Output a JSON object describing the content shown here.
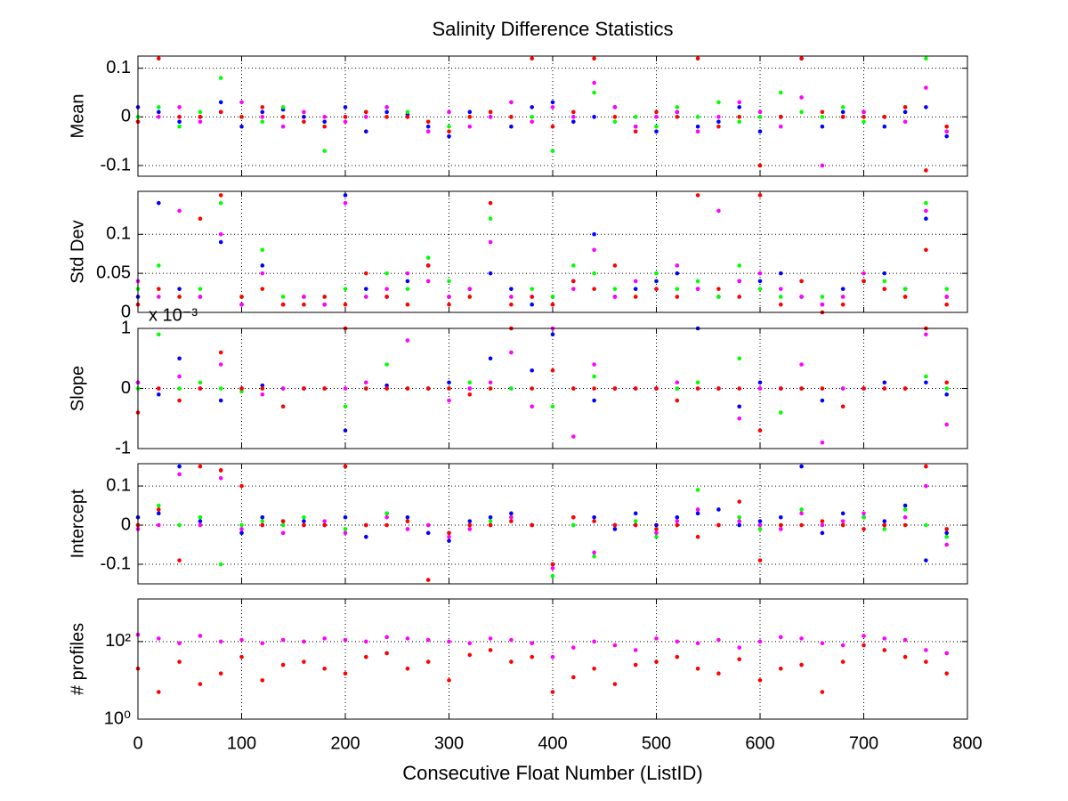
{
  "chart_data": [
    {
      "type": "scatter",
      "title": "Salinity Difference Statistics",
      "ylabel": "Mean",
      "x": [
        0,
        20,
        40,
        60,
        80,
        100,
        120,
        140,
        160,
        180,
        200,
        220,
        240,
        260,
        280,
        300,
        320,
        340,
        360,
        380,
        400,
        420,
        440,
        460,
        480,
        500,
        520,
        540,
        560,
        580,
        600,
        620,
        640,
        660,
        680,
        700,
        720,
        740,
        760,
        780
      ],
      "xlim": [
        0,
        800
      ],
      "xticks": [
        0,
        100,
        200,
        300,
        400,
        500,
        600,
        700,
        800
      ],
      "ylim": [
        -0.122,
        0.125
      ],
      "yticks": [
        -0.1,
        0,
        0.1
      ],
      "grid": true,
      "series": [
        {
          "name": "blue",
          "color": "#0000ff",
          "values": [
            0.02,
            0.01,
            -0.01,
            0.0,
            0.03,
            -0.02,
            0.01,
            0.015,
            0.0,
            -0.01,
            0.02,
            -0.03,
            0.01,
            0.005,
            -0.02,
            -0.04,
            0.01,
            0.0,
            -0.02,
            0.02,
            0.03,
            -0.01,
            0.0,
            0.02,
            -0.02,
            -0.03,
            0.01,
            -0.02,
            -0.01,
            0.02,
            -0.03,
            0.0,
            0.12,
            -0.02,
            0.01,
            0.01,
            -0.02,
            0.01,
            0.02,
            -0.04
          ]
        },
        {
          "name": "green",
          "color": "#00ff00",
          "values": [
            0.0,
            0.02,
            -0.02,
            0.01,
            0.08,
            0.0,
            -0.01,
            0.02,
            0.01,
            -0.07,
            0.0,
            0.01,
            0.02,
            0.01,
            -0.01,
            -0.02,
            0.0,
            0.01,
            0.03,
            0.0,
            -0.07,
            0.0,
            0.05,
            -0.01,
            0.0,
            -0.02,
            0.02,
            0.0,
            0.03,
            -0.01,
            0.0,
            0.05,
            0.01,
            0.0,
            0.02,
            -0.01,
            0.0,
            0.02,
            0.12,
            -0.02
          ]
        },
        {
          "name": "magenta",
          "color": "#ff00ff",
          "values": [
            -0.01,
            0.0,
            0.02,
            -0.01,
            0.01,
            0.03,
            0.0,
            -0.02,
            0.01,
            0.0,
            -0.01,
            0.0,
            0.02,
            0.0,
            -0.03,
            0.01,
            -0.02,
            0.0,
            0.03,
            -0.01,
            0.02,
            0.0,
            0.07,
            0.02,
            -0.02,
            0.0,
            0.01,
            -0.03,
            0.0,
            0.03,
            0.01,
            -0.02,
            0.04,
            -0.1,
            0.0,
            0.01,
            0.0,
            -0.01,
            0.06,
            -0.03
          ]
        },
        {
          "name": "red",
          "color": "#ff0000",
          "values": [
            -0.01,
            0.12,
            0.0,
            0.0,
            0.01,
            0.0,
            0.02,
            0.0,
            -0.01,
            -0.02,
            0.0,
            0.01,
            0.0,
            0.0,
            -0.01,
            -0.03,
            0.0,
            0.01,
            0.0,
            0.12,
            -0.02,
            0.01,
            0.12,
            0.0,
            -0.03,
            0.01,
            0.0,
            0.12,
            -0.02,
            0.0,
            -0.1,
            0.0,
            0.12,
            0.01,
            0.0,
            0.0,
            0.0,
            0.02,
            -0.11,
            -0.02
          ]
        }
      ]
    },
    {
      "type": "scatter",
      "ylabel": "Std Dev",
      "x": [
        0,
        20,
        40,
        60,
        80,
        100,
        120,
        140,
        160,
        180,
        200,
        220,
        240,
        260,
        280,
        300,
        320,
        340,
        360,
        380,
        400,
        420,
        440,
        460,
        480,
        500,
        520,
        540,
        560,
        580,
        600,
        620,
        640,
        660,
        680,
        700,
        720,
        740,
        760,
        780
      ],
      "xlim": [
        0,
        800
      ],
      "xticks": [
        0,
        100,
        200,
        300,
        400,
        500,
        600,
        700,
        800
      ],
      "ylim": [
        0,
        0.155
      ],
      "yticks": [
        0,
        0.05,
        0.1
      ],
      "grid": true,
      "series": [
        {
          "name": "blue",
          "color": "#0000ff",
          "values": [
            0.02,
            0.14,
            0.03,
            0.02,
            0.09,
            0.01,
            0.06,
            0.01,
            0.02,
            0.01,
            0.15,
            0.03,
            0.02,
            0.04,
            0.06,
            0.02,
            0.03,
            0.05,
            0.03,
            0.01,
            0.02,
            0.04,
            0.1,
            0.02,
            0.03,
            0.04,
            0.05,
            0.03,
            0.02,
            0.04,
            0.04,
            0.05,
            0.02,
            0.01,
            0.03,
            0.04,
            0.05,
            0.03,
            0.12,
            0.02
          ]
        },
        {
          "name": "green",
          "color": "#00ff00",
          "values": [
            0.03,
            0.06,
            0.02,
            0.03,
            0.14,
            0.02,
            0.08,
            0.02,
            0.01,
            0.02,
            0.03,
            0.02,
            0.05,
            0.03,
            0.07,
            0.04,
            0.02,
            0.12,
            0.02,
            0.03,
            0.02,
            0.06,
            0.05,
            0.03,
            0.02,
            0.05,
            0.03,
            0.04,
            0.02,
            0.06,
            0.03,
            0.02,
            0.04,
            0.02,
            0.02,
            0.05,
            0.04,
            0.03,
            0.14,
            0.03
          ]
        },
        {
          "name": "magenta",
          "color": "#ff00ff",
          "values": [
            0.04,
            0.02,
            0.13,
            0.02,
            0.1,
            0.01,
            0.05,
            0.01,
            0.02,
            0.01,
            0.14,
            0.02,
            0.03,
            0.05,
            0.04,
            0.02,
            0.03,
            0.09,
            0.02,
            0.02,
            0.01,
            0.03,
            0.08,
            0.02,
            0.04,
            0.03,
            0.06,
            0.03,
            0.13,
            0.04,
            0.05,
            0.03,
            0.02,
            0.01,
            0.02,
            0.05,
            0.03,
            0.02,
            0.13,
            0.02
          ]
        },
        {
          "name": "red",
          "color": "#ff0000",
          "values": [
            0.01,
            0.03,
            0.02,
            0.12,
            0.15,
            0.02,
            0.03,
            0.01,
            0.01,
            0.02,
            0.01,
            0.05,
            0.02,
            0.01,
            0.06,
            0.01,
            0.02,
            0.14,
            0.01,
            0.02,
            0.01,
            0.04,
            0.03,
            0.06,
            0.02,
            0.03,
            0.02,
            0.15,
            0.03,
            0.02,
            0.15,
            0.01,
            0.04,
            0.0,
            0.01,
            0.04,
            0.03,
            0.02,
            0.08,
            0.01
          ]
        }
      ]
    },
    {
      "type": "scatter",
      "ylabel": "Slope",
      "annotation": "x 10⁻³",
      "x": [
        0,
        20,
        40,
        60,
        80,
        100,
        120,
        140,
        160,
        180,
        200,
        220,
        240,
        260,
        280,
        300,
        320,
        340,
        360,
        380,
        400,
        420,
        440,
        460,
        480,
        500,
        520,
        540,
        560,
        580,
        600,
        620,
        640,
        660,
        680,
        700,
        720,
        740,
        760,
        780
      ],
      "xlim": [
        0,
        800
      ],
      "xticks": [
        0,
        100,
        200,
        300,
        400,
        500,
        600,
        700,
        800
      ],
      "ylim": [
        -1,
        1
      ],
      "yticks": [
        -1,
        0,
        1
      ],
      "grid": true,
      "series": [
        {
          "name": "blue",
          "color": "#0000ff",
          "values": [
            0.1,
            -0.1,
            0.5,
            0.0,
            -0.2,
            0.0,
            0.05,
            0.0,
            0.0,
            0.0,
            -0.7,
            0.0,
            0.05,
            0.0,
            0.0,
            0.1,
            0.0,
            0.5,
            0.0,
            0.3,
            0.9,
            0.0,
            -0.2,
            0.0,
            0.0,
            0.0,
            0.0,
            1.0,
            0.0,
            -0.3,
            0.1,
            0.0,
            0.0,
            -0.2,
            0.0,
            0.0,
            0.1,
            0.0,
            0.1,
            -0.1
          ]
        },
        {
          "name": "green",
          "color": "#00ff00",
          "values": [
            0.0,
            0.9,
            0.0,
            0.1,
            0.0,
            -0.05,
            0.0,
            0.0,
            0.0,
            0.0,
            -0.3,
            0.0,
            0.4,
            0.0,
            0.0,
            0.0,
            0.1,
            0.0,
            0.0,
            0.0,
            -0.3,
            0.0,
            0.2,
            0.0,
            0.0,
            0.0,
            0.0,
            0.1,
            0.0,
            0.5,
            0.0,
            -0.4,
            0.0,
            0.0,
            0.0,
            0.0,
            0.0,
            0.0,
            0.2,
            0.0
          ]
        },
        {
          "name": "magenta",
          "color": "#ff00ff",
          "values": [
            0.1,
            0.0,
            0.2,
            0.0,
            0.4,
            0.0,
            -0.1,
            0.0,
            0.0,
            0.0,
            0.0,
            0.1,
            0.0,
            0.8,
            0.0,
            -0.2,
            0.0,
            0.1,
            0.6,
            -0.3,
            1.0,
            -0.8,
            0.4,
            0.0,
            0.0,
            0.0,
            0.1,
            0.0,
            0.0,
            -0.5,
            0.0,
            0.0,
            0.4,
            -0.9,
            0.0,
            0.0,
            0.0,
            0.0,
            0.9,
            -0.6
          ]
        },
        {
          "name": "red",
          "color": "#ff0000",
          "values": [
            -0.4,
            0.0,
            -0.2,
            0.0,
            0.6,
            0.0,
            0.0,
            -0.3,
            0.0,
            0.0,
            1.0,
            0.0,
            0.0,
            0.0,
            0.0,
            0.0,
            -0.1,
            0.0,
            1.0,
            0.0,
            0.3,
            0.0,
            0.0,
            0.0,
            0.0,
            0.0,
            -0.2,
            0.0,
            0.0,
            0.0,
            -0.7,
            0.0,
            0.0,
            0.0,
            -0.3,
            0.0,
            0.0,
            0.0,
            1.0,
            0.1
          ]
        }
      ]
    },
    {
      "type": "scatter",
      "ylabel": "Intercept",
      "x": [
        0,
        20,
        40,
        60,
        80,
        100,
        120,
        140,
        160,
        180,
        200,
        220,
        240,
        260,
        280,
        300,
        320,
        340,
        360,
        380,
        400,
        420,
        440,
        460,
        480,
        500,
        520,
        540,
        560,
        580,
        600,
        620,
        640,
        660,
        680,
        700,
        720,
        740,
        760,
        780
      ],
      "xlim": [
        0,
        800
      ],
      "xticks": [
        0,
        100,
        200,
        300,
        400,
        500,
        600,
        700,
        800
      ],
      "ylim": [
        -0.15,
        0.157
      ],
      "yticks": [
        -0.1,
        0,
        0.1
      ],
      "grid": true,
      "series": [
        {
          "name": "blue",
          "color": "#0000ff",
          "values": [
            0.02,
            0.03,
            0.15,
            0.01,
            0.14,
            -0.02,
            0.02,
            0.01,
            0.01,
            0.0,
            0.02,
            -0.03,
            0.03,
            0.02,
            -0.02,
            -0.04,
            0.01,
            0.02,
            0.03,
            0.0,
            -0.1,
            0.0,
            0.02,
            -0.01,
            0.03,
            0.0,
            0.02,
            0.03,
            0.04,
            0.0,
            0.01,
            0.02,
            0.15,
            -0.02,
            0.03,
            0.02,
            0.01,
            0.05,
            -0.09,
            -0.02
          ]
        },
        {
          "name": "green",
          "color": "#00ff00",
          "values": [
            0.0,
            0.05,
            0.0,
            0.02,
            -0.1,
            0.0,
            0.01,
            0.0,
            0.02,
            0.0,
            -0.01,
            0.0,
            0.03,
            0.01,
            0.0,
            -0.02,
            0.0,
            0.01,
            0.02,
            0.0,
            -0.13,
            0.0,
            -0.08,
            0.0,
            0.01,
            -0.03,
            0.0,
            0.09,
            0.0,
            0.02,
            -0.01,
            0.0,
            0.04,
            0.0,
            0.0,
            0.02,
            -0.01,
            0.04,
            0.0,
            -0.03
          ]
        },
        {
          "name": "magenta",
          "color": "#ff00ff",
          "values": [
            -0.01,
            0.0,
            0.13,
            0.0,
            0.12,
            -0.01,
            0.0,
            -0.02,
            0.0,
            0.01,
            -0.02,
            0.0,
            0.02,
            -0.01,
            0.0,
            -0.03,
            -0.01,
            0.0,
            0.02,
            0.0,
            -0.11,
            0.02,
            -0.07,
            0.0,
            0.0,
            -0.02,
            0.01,
            0.04,
            0.0,
            0.01,
            0.0,
            -0.01,
            0.03,
            0.0,
            0.01,
            0.03,
            0.0,
            0.02,
            0.1,
            -0.05
          ]
        },
        {
          "name": "red",
          "color": "#ff0000",
          "values": [
            0.0,
            0.04,
            -0.09,
            0.15,
            0.14,
            0.1,
            0.0,
            0.01,
            0.0,
            0.0,
            0.15,
            0.0,
            0.0,
            0.01,
            -0.14,
            -0.02,
            0.0,
            0.0,
            0.01,
            0.0,
            -0.1,
            0.02,
            0.01,
            0.0,
            0.0,
            -0.01,
            0.0,
            -0.03,
            0.0,
            0.06,
            -0.09,
            0.0,
            0.0,
            0.01,
            0.0,
            -0.01,
            0.0,
            0.0,
            0.15,
            -0.01
          ]
        }
      ]
    },
    {
      "type": "scatter",
      "ylabel": "# profiles",
      "xlabel": "Consecutive Float Number (ListID)",
      "yscale": "log",
      "x": [
        0,
        20,
        40,
        60,
        80,
        100,
        120,
        140,
        160,
        180,
        200,
        220,
        240,
        260,
        280,
        300,
        320,
        340,
        360,
        380,
        400,
        420,
        440,
        460,
        480,
        500,
        520,
        540,
        560,
        580,
        600,
        620,
        640,
        660,
        680,
        700,
        720,
        740,
        760,
        780
      ],
      "xlim": [
        0,
        800
      ],
      "xticks": [
        0,
        100,
        200,
        300,
        400,
        500,
        600,
        700,
        800
      ],
      "ylim": [
        1,
        1250
      ],
      "yticks": [
        {
          "value": 1,
          "label": "10⁰"
        },
        {
          "value": 100,
          "label": "10²"
        }
      ],
      "grid": true,
      "series": [
        {
          "name": "magenta",
          "color": "#ff00ff",
          "values": [
            150,
            120,
            90,
            140,
            100,
            110,
            90,
            110,
            100,
            120,
            110,
            100,
            130,
            120,
            110,
            100,
            90,
            120,
            110,
            90,
            40,
            70,
            100,
            80,
            60,
            120,
            100,
            90,
            110,
            70,
            100,
            130,
            120,
            90,
            80,
            140,
            120,
            110,
            60,
            50
          ]
        },
        {
          "name": "red",
          "color": "#ff0000",
          "values": [
            20,
            5,
            30,
            8,
            15,
            40,
            10,
            25,
            30,
            20,
            15,
            40,
            50,
            20,
            30,
            10,
            45,
            60,
            30,
            40,
            5,
            12,
            20,
            8,
            25,
            30,
            40,
            20,
            15,
            35,
            10,
            20,
            25,
            5,
            30,
            80,
            60,
            40,
            30,
            15
          ]
        }
      ]
    }
  ]
}
